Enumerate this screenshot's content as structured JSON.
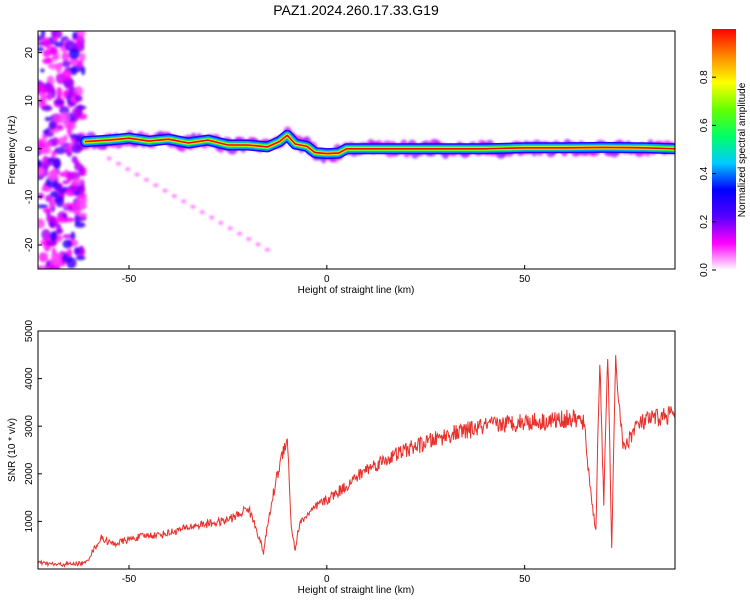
{
  "title": "PAZ1.2024.260.17.33.G19",
  "chart_data": [
    {
      "type": "heatmap",
      "title": "PAZ1.2024.260.17.33.G19",
      "xlabel": "Height of straight line (km)",
      "ylabel": "Frequency (Hz)",
      "xlim": [
        -73,
        88
      ],
      "ylim": [
        -25,
        24.5
      ],
      "x_ticks": [
        -50,
        0,
        50
      ],
      "y_ticks": [
        -20,
        -10,
        0,
        10,
        20
      ],
      "colorbar": {
        "label": "Normalized spectral amplitude",
        "range": [
          0,
          1
        ],
        "ticks": [
          0.0,
          0.2,
          0.4,
          0.6,
          0.8
        ],
        "colormap": [
          "#ffffff",
          "#ff00ff",
          "#5500ff",
          "#0000ff",
          "#00ccff",
          "#00ff66",
          "#66ff00",
          "#ffff00",
          "#ff8800",
          "#ff0000"
        ]
      },
      "ridge": {
        "description": "dominant frequency trace",
        "points": [
          [
            -61,
            1.5
          ],
          [
            -55,
            1.8
          ],
          [
            -50,
            2.2
          ],
          [
            -45,
            1.6
          ],
          [
            -40,
            2.0
          ],
          [
            -35,
            1.2
          ],
          [
            -30,
            1.8
          ],
          [
            -25,
            0.8
          ],
          [
            -20,
            0.8
          ],
          [
            -15,
            0.4
          ],
          [
            -12,
            1.5
          ],
          [
            -10,
            2.8
          ],
          [
            -8,
            1.0
          ],
          [
            -5,
            0.5
          ],
          [
            -3,
            -0.8
          ],
          [
            0,
            -1.0
          ],
          [
            3,
            -0.9
          ],
          [
            5,
            0.0
          ],
          [
            10,
            0.0
          ],
          [
            20,
            0.0
          ],
          [
            30,
            0.0
          ],
          [
            40,
            0.0
          ],
          [
            50,
            0.2
          ],
          [
            60,
            0.2
          ],
          [
            70,
            0.3
          ],
          [
            80,
            0.2
          ],
          [
            88,
            0.0
          ]
        ]
      }
    },
    {
      "type": "line",
      "xlabel": "Height of straight line (km)",
      "ylabel": "SNR (10 * v/v)",
      "xlim": [
        -73,
        88
      ],
      "ylim": [
        0,
        5000
      ],
      "x_ticks": [
        -50,
        0,
        50
      ],
      "y_ticks": [
        1000,
        2000,
        3000,
        4000,
        5000
      ],
      "color": "#e8302c",
      "series": [
        {
          "x": [
            -73,
            -68,
            -64,
            -61,
            -59,
            -57,
            -54,
            -50,
            -46,
            -42,
            -38,
            -34,
            -30,
            -26,
            -22,
            -20,
            -18,
            -16,
            -15,
            -13,
            -11,
            -10,
            -9,
            -8,
            -7,
            -6,
            -4,
            -2,
            0,
            5,
            10,
            15,
            20,
            25,
            30,
            35,
            40,
            45,
            50,
            55,
            60,
            63,
            65,
            66,
            67,
            68,
            69,
            70,
            71,
            72,
            73,
            75,
            78,
            82,
            85,
            88
          ],
          "y": [
            130,
            90,
            110,
            120,
            400,
            650,
            520,
            620,
            700,
            720,
            800,
            900,
            950,
            1000,
            1150,
            1300,
            900,
            350,
            900,
            1800,
            2500,
            2800,
            900,
            400,
            900,
            1050,
            1200,
            1350,
            1450,
            1750,
            2100,
            2300,
            2500,
            2650,
            2800,
            2900,
            3000,
            3050,
            3100,
            3100,
            3150,
            3150,
            3050,
            2200,
            1400,
            800,
            4500,
            1300,
            4600,
            500,
            4300,
            2500,
            3000,
            3150,
            3200,
            3300
          ]
        }
      ]
    }
  ]
}
